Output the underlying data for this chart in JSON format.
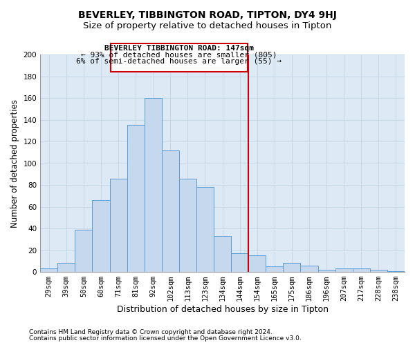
{
  "title": "BEVERLEY, TIBBINGTON ROAD, TIPTON, DY4 9HJ",
  "subtitle": "Size of property relative to detached houses in Tipton",
  "xlabel": "Distribution of detached houses by size in Tipton",
  "ylabel": "Number of detached properties",
  "bar_labels": [
    "29sqm",
    "39sqm",
    "50sqm",
    "60sqm",
    "71sqm",
    "81sqm",
    "92sqm",
    "102sqm",
    "113sqm",
    "123sqm",
    "134sqm",
    "144sqm",
    "154sqm",
    "165sqm",
    "175sqm",
    "186sqm",
    "196sqm",
    "207sqm",
    "217sqm",
    "228sqm",
    "238sqm"
  ],
  "bar_values": [
    3,
    8,
    39,
    66,
    86,
    135,
    160,
    112,
    86,
    78,
    33,
    17,
    15,
    5,
    8,
    6,
    2,
    3,
    3,
    2,
    1
  ],
  "bar_color": "#c5d8ed",
  "bar_edge_color": "#5b9bd5",
  "vline_color": "#cc0000",
  "annotation_line1": "BEVERLEY TIBBINGTON ROAD: 147sqm",
  "annotation_line2": "← 93% of detached houses are smaller (805)",
  "annotation_line3": "6% of semi-detached houses are larger (55) →",
  "annotation_box_color": "#cc0000",
  "ylim": [
    0,
    200
  ],
  "yticks": [
    0,
    20,
    40,
    60,
    80,
    100,
    120,
    140,
    160,
    180,
    200
  ],
  "grid_color": "#c8d8e8",
  "plot_bg_color": "#ddeaf5",
  "footer1": "Contains HM Land Registry data © Crown copyright and database right 2024.",
  "footer2": "Contains public sector information licensed under the Open Government Licence v3.0.",
  "title_fontsize": 10,
  "subtitle_fontsize": 9.5,
  "tick_fontsize": 7.5,
  "footer_fontsize": 6.5,
  "annot_fontsize": 8
}
